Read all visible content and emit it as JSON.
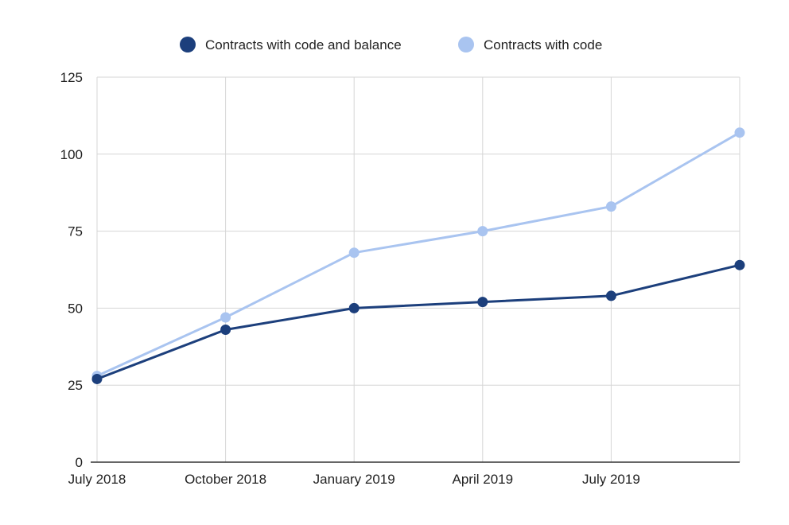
{
  "chart_data": {
    "type": "line",
    "title": "",
    "xlabel": "",
    "ylabel": "",
    "categories": [
      "July 2018",
      "October 2018",
      "January 2019",
      "April 2019",
      "July 2019",
      ""
    ],
    "ylim": [
      0,
      125
    ],
    "yticks": [
      0,
      25,
      50,
      75,
      100,
      125
    ],
    "grid": true,
    "legend": "top-center",
    "series": [
      {
        "name": "Contracts with code and balance",
        "color": "#1c3f7c",
        "values": [
          27,
          43,
          50,
          52,
          54,
          64
        ]
      },
      {
        "name": "Contracts with code",
        "color": "#a9c4f0",
        "values": [
          28,
          47,
          68,
          75,
          83,
          107
        ]
      }
    ]
  }
}
